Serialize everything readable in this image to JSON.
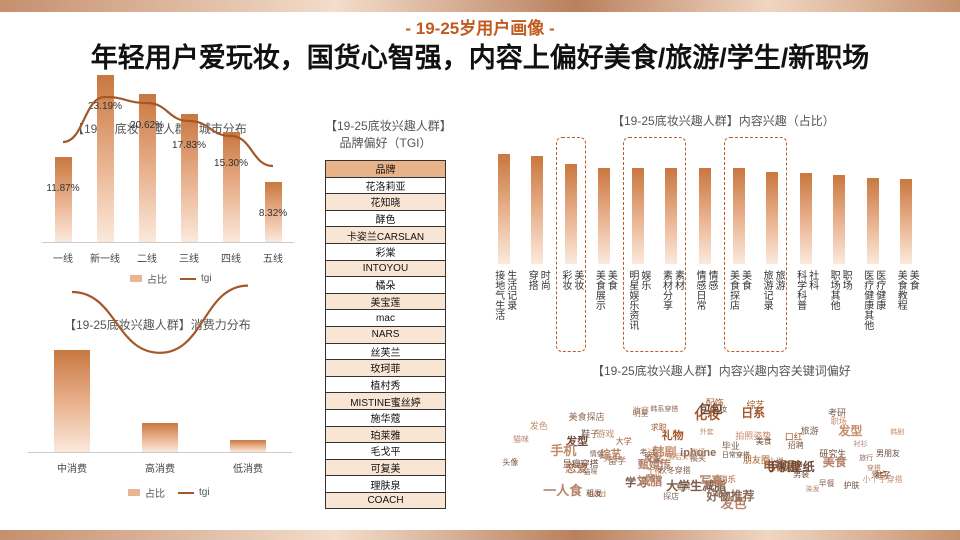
{
  "header": {
    "subtitle": "- 19-25岁用户画像 -",
    "title": "年轻用户爱玩妆，国货心智强，内容上偏好美食/旅游/学生/新职场"
  },
  "city_chart": {
    "title": "【19-25底妆兴趣人群】城市分布",
    "legend_bar": "占比",
    "legend_line": "tgi"
  },
  "spend_chart": {
    "title": "【19-25底妆兴趣人群】消费力分布",
    "legend_bar": "占比",
    "legend_line": "tgi"
  },
  "brand_table": {
    "title_line1": "【19-25底妆兴趣人群】",
    "title_line2": "品牌偏好（TGI）",
    "header": "品牌",
    "rows": [
      "花洛莉亚",
      "花知晓",
      "酵色",
      "卡姿兰CARSLAN",
      "彩棠",
      "INTOYOU",
      "橘朵",
      "美宝莲",
      "mac",
      "NARS",
      "丝芙兰",
      "玫珂菲",
      "植村秀",
      "MISTINE蜜丝婷",
      "施华蔻",
      "珀莱雅",
      "毛戈平",
      "可复美",
      "理肤泉",
      "COACH"
    ]
  },
  "content_chart": {
    "title": "【19-25底妆兴趣人群】内容兴趣（占比）"
  },
  "cloud": {
    "title": "【19-25底妆兴趣人群】内容兴趣内容关键词偏好",
    "words": [
      "手机",
      "景点",
      "探店",
      "综艺",
      "发型",
      "韩剧",
      "招聘",
      "求职",
      "留学",
      "染发",
      "裤子",
      "美甲",
      "美妆",
      "面试",
      "明星",
      "恋爱",
      "显瘦穿搭",
      "外套",
      "考研",
      "化妆",
      "教育",
      "妆容",
      "研究生",
      "小个子穿搭",
      "鞋子",
      "口红",
      "韩系穿搭",
      "发色",
      "日常穿搭",
      "拍照姿势",
      "租房",
      "消消乐",
      "iphone",
      "甄嬛传",
      "男朋友",
      "ootd",
      "大学生减脂",
      "朋友圈",
      "旅行",
      "猫咪",
      "护肤",
      "发型",
      "旅游",
      "综艺",
      "美食探店",
      "衬衫",
      "包包",
      "职场",
      "头像",
      "礼物",
      "搞笑",
      "美食",
      "vlog",
      "游戏",
      "学习",
      "电视剧",
      "猫咪",
      "穿搭",
      "美食",
      "情侣头像",
      "毕业",
      "工作",
      "好物推荐",
      "一人食",
      "手机壁纸",
      "发色",
      "秋冬穿搭",
      "日系",
      "早餐",
      "减脂",
      "男装",
      "手机",
      "小说",
      "配饰",
      "文案",
      "写真",
      "粗发",
      "韩剧",
      "情侣",
      "大学",
      "考试",
      "职场"
    ]
  },
  "chart_data": [
    {
      "type": "bar",
      "title": "【19-25底妆兴趣人群】城市分布",
      "categories": [
        "一线",
        "新一线",
        "二线",
        "三线",
        "四线",
        "五线"
      ],
      "series": [
        {
          "name": "占比",
          "values": [
            11.87,
            23.19,
            20.62,
            17.83,
            15.3,
            8.32
          ],
          "labels": [
            "11.87%",
            "23.19%",
            "20.62%",
            "17.83%",
            "15.30%",
            "8.32%"
          ]
        },
        {
          "name": "tgi",
          "type": "line",
          "values": [
            96,
            111,
            109,
            103,
            98,
            88
          ]
        }
      ],
      "ylim": [
        0,
        30
      ],
      "tgi_range": [
        70,
        120
      ],
      "legend": "bottom"
    },
    {
      "type": "bar",
      "title": "【19-25底妆兴趣人群】消费力分布",
      "categories": [
        "中消费",
        "高消费",
        "低消费"
      ],
      "series": [
        {
          "name": "占比",
          "values": [
            60,
            17,
            7
          ]
        },
        {
          "name": "tgi",
          "type": "line",
          "values": [
            110,
            91,
            112
          ]
        }
      ],
      "ylim": [
        0,
        65
      ],
      "tgi_range": [
        70,
        120
      ],
      "legend": "bottom"
    },
    {
      "type": "bar",
      "title": "【19-25底妆兴趣人群】内容兴趣（占比）",
      "categories": [
        [
          "生活记录",
          "接地气生活"
        ],
        [
          "时尚",
          "穿搭"
        ],
        [
          "美妆",
          "彩妆"
        ],
        [
          "美食",
          "美食展示"
        ],
        [
          "娱乐",
          "明星娱乐资讯"
        ],
        [
          "素材",
          "素材分享"
        ],
        [
          "情感",
          "情感日常"
        ],
        [
          "美食",
          "美食探店"
        ],
        [
          "旅游",
          "旅游记录"
        ],
        [
          "社科",
          "科学科普"
        ],
        [
          "职场",
          "职场其他"
        ],
        [
          "医疗健康",
          "医疗健康其他"
        ],
        [
          "美食",
          "美食教程"
        ]
      ],
      "values": [
        92,
        90,
        83,
        80,
        80,
        80,
        80,
        80,
        77,
        76,
        74,
        72,
        71
      ],
      "highlighted": [
        2,
        4,
        5,
        7,
        8
      ],
      "ylim": [
        0,
        100
      ]
    }
  ]
}
